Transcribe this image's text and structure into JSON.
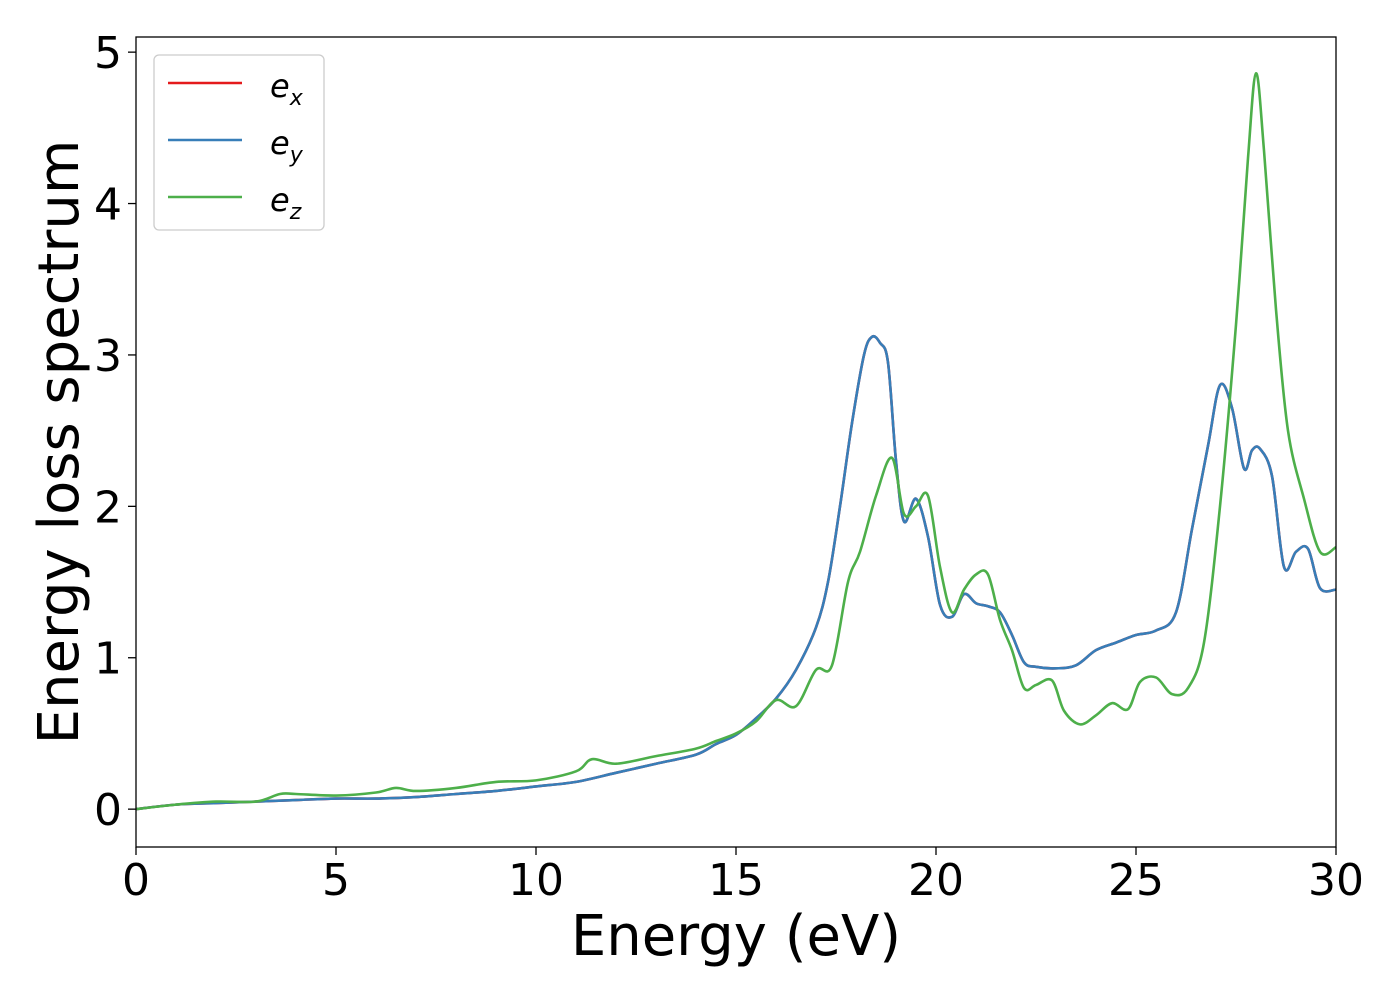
{
  "chart_data": {
    "type": "line",
    "title": "",
    "xlabel": "Energy (eV)",
    "ylabel": "Energy loss spectrum",
    "xlim": [
      0,
      30
    ],
    "ylim": [
      -0.25,
      5.1
    ],
    "xticks": [
      0,
      5,
      10,
      15,
      20,
      25,
      30
    ],
    "yticks": [
      0,
      1,
      2,
      3,
      4,
      5
    ],
    "xtick_labels": [
      "0",
      "5",
      "10",
      "15",
      "20",
      "25",
      "30"
    ],
    "ytick_labels": [
      "0",
      "1",
      "2",
      "3",
      "4",
      "5"
    ],
    "grid": false,
    "legend_position": "top-left",
    "series": [
      {
        "name": "e_x",
        "legend_base": "e",
        "legend_sub": "x",
        "color": "#e41a1c",
        "x": [
          0,
          1,
          2,
          3,
          4,
          5,
          6,
          7,
          8,
          9,
          10,
          11,
          12,
          13,
          14,
          14.5,
          15,
          15.5,
          16,
          16.5,
          17,
          17.3,
          17.6,
          17.9,
          18.2,
          18.4,
          18.6,
          18.8,
          19,
          19.2,
          19.5,
          19.8,
          20.1,
          20.4,
          20.7,
          21,
          21.3,
          21.6,
          21.9,
          22.2,
          22.5,
          23,
          23.5,
          24,
          24.5,
          25,
          25.5,
          26,
          26.4,
          26.8,
          27.1,
          27.4,
          27.7,
          27.9,
          28.1,
          28.4,
          28.7,
          29,
          29.3,
          29.6,
          30
        ],
        "y": [
          0,
          0.03,
          0.04,
          0.05,
          0.06,
          0.07,
          0.07,
          0.08,
          0.1,
          0.12,
          0.15,
          0.18,
          0.24,
          0.3,
          0.36,
          0.43,
          0.49,
          0.6,
          0.73,
          0.92,
          1.2,
          1.5,
          2.0,
          2.55,
          3.0,
          3.12,
          3.08,
          2.95,
          2.3,
          1.9,
          2.05,
          1.8,
          1.35,
          1.27,
          1.42,
          1.36,
          1.34,
          1.3,
          1.15,
          0.97,
          0.94,
          0.93,
          0.95,
          1.05,
          1.1,
          1.15,
          1.18,
          1.3,
          1.85,
          2.4,
          2.8,
          2.65,
          2.25,
          2.37,
          2.38,
          2.2,
          1.6,
          1.7,
          1.72,
          1.46,
          1.45
        ]
      },
      {
        "name": "e_y",
        "legend_base": "e",
        "legend_sub": "y",
        "color": "#377eb8",
        "x": [
          0,
          1,
          2,
          3,
          4,
          5,
          6,
          7,
          8,
          9,
          10,
          11,
          12,
          13,
          14,
          14.5,
          15,
          15.5,
          16,
          16.5,
          17,
          17.3,
          17.6,
          17.9,
          18.2,
          18.4,
          18.6,
          18.8,
          19,
          19.2,
          19.5,
          19.8,
          20.1,
          20.4,
          20.7,
          21,
          21.3,
          21.6,
          21.9,
          22.2,
          22.5,
          23,
          23.5,
          24,
          24.5,
          25,
          25.5,
          26,
          26.4,
          26.8,
          27.1,
          27.4,
          27.7,
          27.9,
          28.1,
          28.4,
          28.7,
          29,
          29.3,
          29.6,
          30
        ],
        "y": [
          0,
          0.03,
          0.04,
          0.05,
          0.06,
          0.07,
          0.07,
          0.08,
          0.1,
          0.12,
          0.15,
          0.18,
          0.24,
          0.3,
          0.36,
          0.43,
          0.49,
          0.6,
          0.73,
          0.92,
          1.2,
          1.5,
          2.0,
          2.55,
          3.0,
          3.12,
          3.08,
          2.95,
          2.3,
          1.9,
          2.05,
          1.8,
          1.35,
          1.27,
          1.42,
          1.36,
          1.34,
          1.3,
          1.15,
          0.97,
          0.94,
          0.93,
          0.95,
          1.05,
          1.1,
          1.15,
          1.18,
          1.3,
          1.85,
          2.4,
          2.8,
          2.65,
          2.25,
          2.37,
          2.38,
          2.2,
          1.6,
          1.7,
          1.72,
          1.46,
          1.45
        ]
      },
      {
        "name": "e_z",
        "legend_base": "e",
        "legend_sub": "z",
        "color": "#4daf4a",
        "x": [
          0,
          1,
          2,
          3,
          3.6,
          4,
          5,
          6,
          6.5,
          7,
          8,
          9,
          10,
          11,
          11.4,
          12,
          13,
          14,
          14.5,
          15,
          15.5,
          16,
          16.5,
          17,
          17.4,
          17.8,
          18.1,
          18.5,
          18.9,
          19.2,
          19.5,
          19.8,
          20.1,
          20.4,
          20.7,
          21,
          21.3,
          21.6,
          21.9,
          22.2,
          22.5,
          22.9,
          23.2,
          23.6,
          24,
          24.4,
          24.8,
          25.1,
          25.5,
          25.9,
          26.3,
          26.7,
          27.1,
          27.5,
          27.8,
          28,
          28.2,
          28.5,
          28.8,
          29.2,
          29.6,
          30
        ],
        "y": [
          0,
          0.03,
          0.05,
          0.05,
          0.1,
          0.1,
          0.09,
          0.11,
          0.14,
          0.12,
          0.14,
          0.18,
          0.19,
          0.25,
          0.33,
          0.3,
          0.35,
          0.4,
          0.45,
          0.5,
          0.58,
          0.72,
          0.68,
          0.92,
          0.95,
          1.5,
          1.7,
          2.07,
          2.32,
          1.95,
          2.0,
          2.07,
          1.6,
          1.3,
          1.45,
          1.55,
          1.55,
          1.25,
          1.05,
          0.8,
          0.82,
          0.85,
          0.65,
          0.56,
          0.62,
          0.7,
          0.66,
          0.84,
          0.87,
          0.76,
          0.8,
          1.1,
          2.0,
          3.2,
          4.3,
          4.86,
          4.35,
          3.3,
          2.5,
          2.05,
          1.7,
          1.73
        ]
      }
    ]
  }
}
